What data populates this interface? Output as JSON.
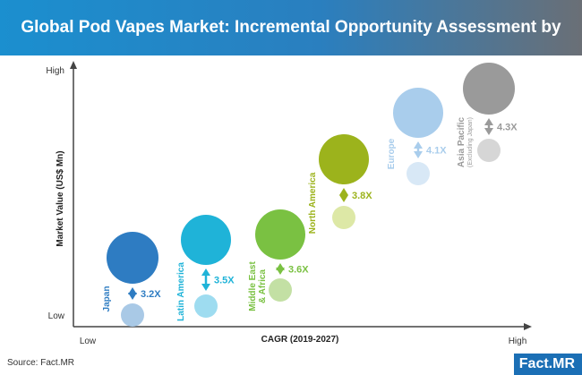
{
  "title": "Global Pod Vapes Market: Incremental Opportunity Assessment by Region",
  "source": "Source: Fact.MR",
  "logo": "Fact.MR",
  "chart_data": {
    "type": "bubble",
    "xlabel": "CAGR (2019-2027)",
    "ylabel": "Market Value (US$ Mn)",
    "x_ticks": [
      "Low",
      "High"
    ],
    "y_ticks": [
      "High",
      "Low"
    ],
    "series": [
      {
        "label": "Japan",
        "multiplier": "3.2X",
        "color": "#2e7cc2",
        "light": "#a9c9e6"
      },
      {
        "label": "Latin America",
        "multiplier": "3.5X",
        "color": "#1fb3d8",
        "light": "#9edcf0"
      },
      {
        "label": "Middle East\n& Africa",
        "multiplier": "3.6X",
        "color": "#7ac142",
        "light": "#c3e0a4"
      },
      {
        "label": "North America",
        "multiplier": "3.8X",
        "color": "#9cb31c",
        "light": "#dde8a6"
      },
      {
        "label": "Europe",
        "multiplier": "4.1X",
        "color": "#a9cdec",
        "light": "#d8e8f6"
      },
      {
        "label": "Asia Pacific",
        "sublabel": "(Excluding Japan)",
        "multiplier": "4.3X",
        "color": "#9a9a9a",
        "light": "#d6d6d6"
      }
    ]
  }
}
